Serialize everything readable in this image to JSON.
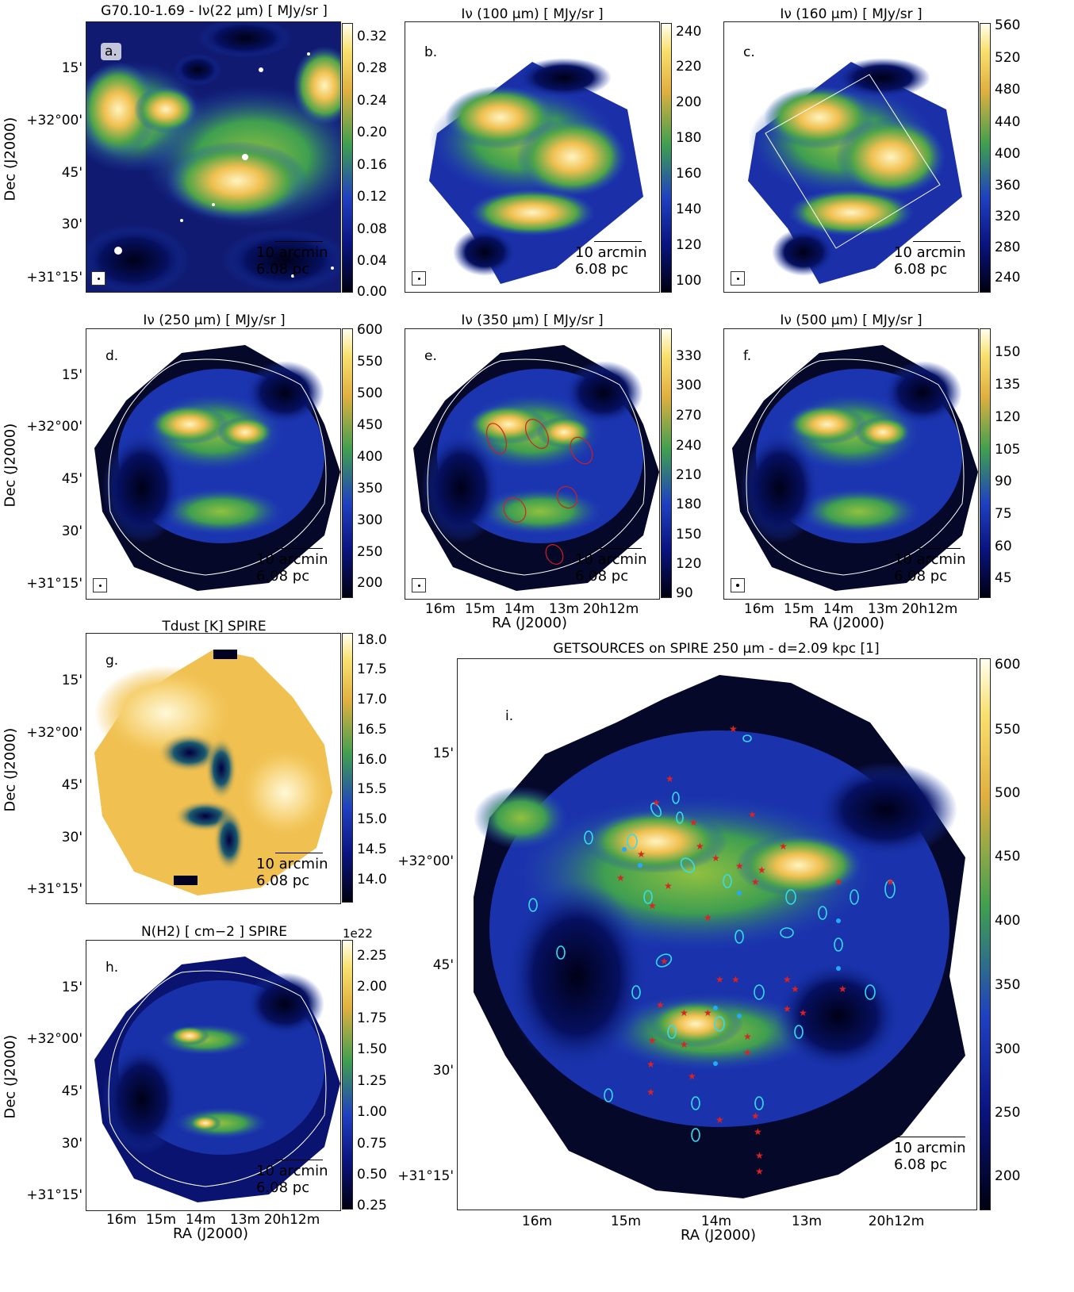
{
  "figure": {
    "panels": [
      {
        "id": "a",
        "title": "G70.10-1.69 - Iν(22 μm)  [ MJy/sr ]",
        "label": "a.",
        "colorbar": [
          "0.32",
          "0.28",
          "0.24",
          "0.20",
          "0.16",
          "0.12",
          "0.08",
          "0.04",
          "0.00"
        ]
      },
      {
        "id": "b",
        "title": "Iν (100 μm) [ MJy/sr ]",
        "label": "b.",
        "colorbar": [
          "240",
          "220",
          "200",
          "180",
          "160",
          "140",
          "120",
          "100"
        ]
      },
      {
        "id": "c",
        "title": "Iν (160 μm) [ MJy/sr ]",
        "label": "c.",
        "colorbar": [
          "560",
          "520",
          "480",
          "440",
          "400",
          "360",
          "320",
          "280",
          "240"
        ]
      },
      {
        "id": "d",
        "title": "Iν (250 μm) [ MJy/sr ]",
        "label": "d.",
        "colorbar": [
          "600",
          "550",
          "500",
          "450",
          "400",
          "350",
          "300",
          "250",
          "200"
        ]
      },
      {
        "id": "e",
        "title": "Iν (350 μm) [ MJy/sr ]",
        "label": "e.",
        "colorbar": [
          "330",
          "300",
          "270",
          "240",
          "210",
          "180",
          "150",
          "120",
          "90"
        ]
      },
      {
        "id": "f",
        "title": "Iν (500 μm) [ MJy/sr ]",
        "label": "f.",
        "colorbar": [
          "150",
          "135",
          "120",
          "105",
          "90",
          "75",
          "60",
          "45"
        ]
      },
      {
        "id": "g",
        "title": "Tdust [K] SPIRE",
        "label": "g.",
        "colorbar": [
          "18.0",
          "17.5",
          "17.0",
          "16.5",
          "16.0",
          "15.5",
          "15.0",
          "14.5",
          "14.0"
        ]
      },
      {
        "id": "h",
        "title": "N(H2) [ cm−2 ] SPIRE",
        "label": "h.",
        "colorbar": [
          "2.25",
          "2.00",
          "1.75",
          "1.50",
          "1.25",
          "1.00",
          "0.75",
          "0.50",
          "0.25"
        ],
        "exponent": "1e22"
      },
      {
        "id": "i",
        "title": "GETSOURCES on SPIRE 250 μm  -  d=2.09 kpc [1]",
        "label": "i.",
        "colorbar": [
          "600",
          "550",
          "500",
          "450",
          "400",
          "350",
          "300",
          "250",
          "200"
        ]
      }
    ],
    "scalebar": {
      "angular": "10 arcmin",
      "physical": "6.08 pc"
    },
    "axes": {
      "ylabel": "Dec (J2000)",
      "xlabel": "RA (J2000)",
      "dec_ticks": [
        "15'",
        "+32°00'",
        "45'",
        "30'",
        "+31°15'"
      ],
      "ra_ticks": [
        "16m",
        "15m",
        "14m",
        "13m",
        "20h12m"
      ]
    },
    "colors": {
      "low": "#000010",
      "mid": "#1f2fbf",
      "green": "#3fa040",
      "yellow": "#f4c040",
      "high": "#ffffe8",
      "sources_cyan": "#33ddee",
      "sources_red": "#dd2222"
    }
  }
}
